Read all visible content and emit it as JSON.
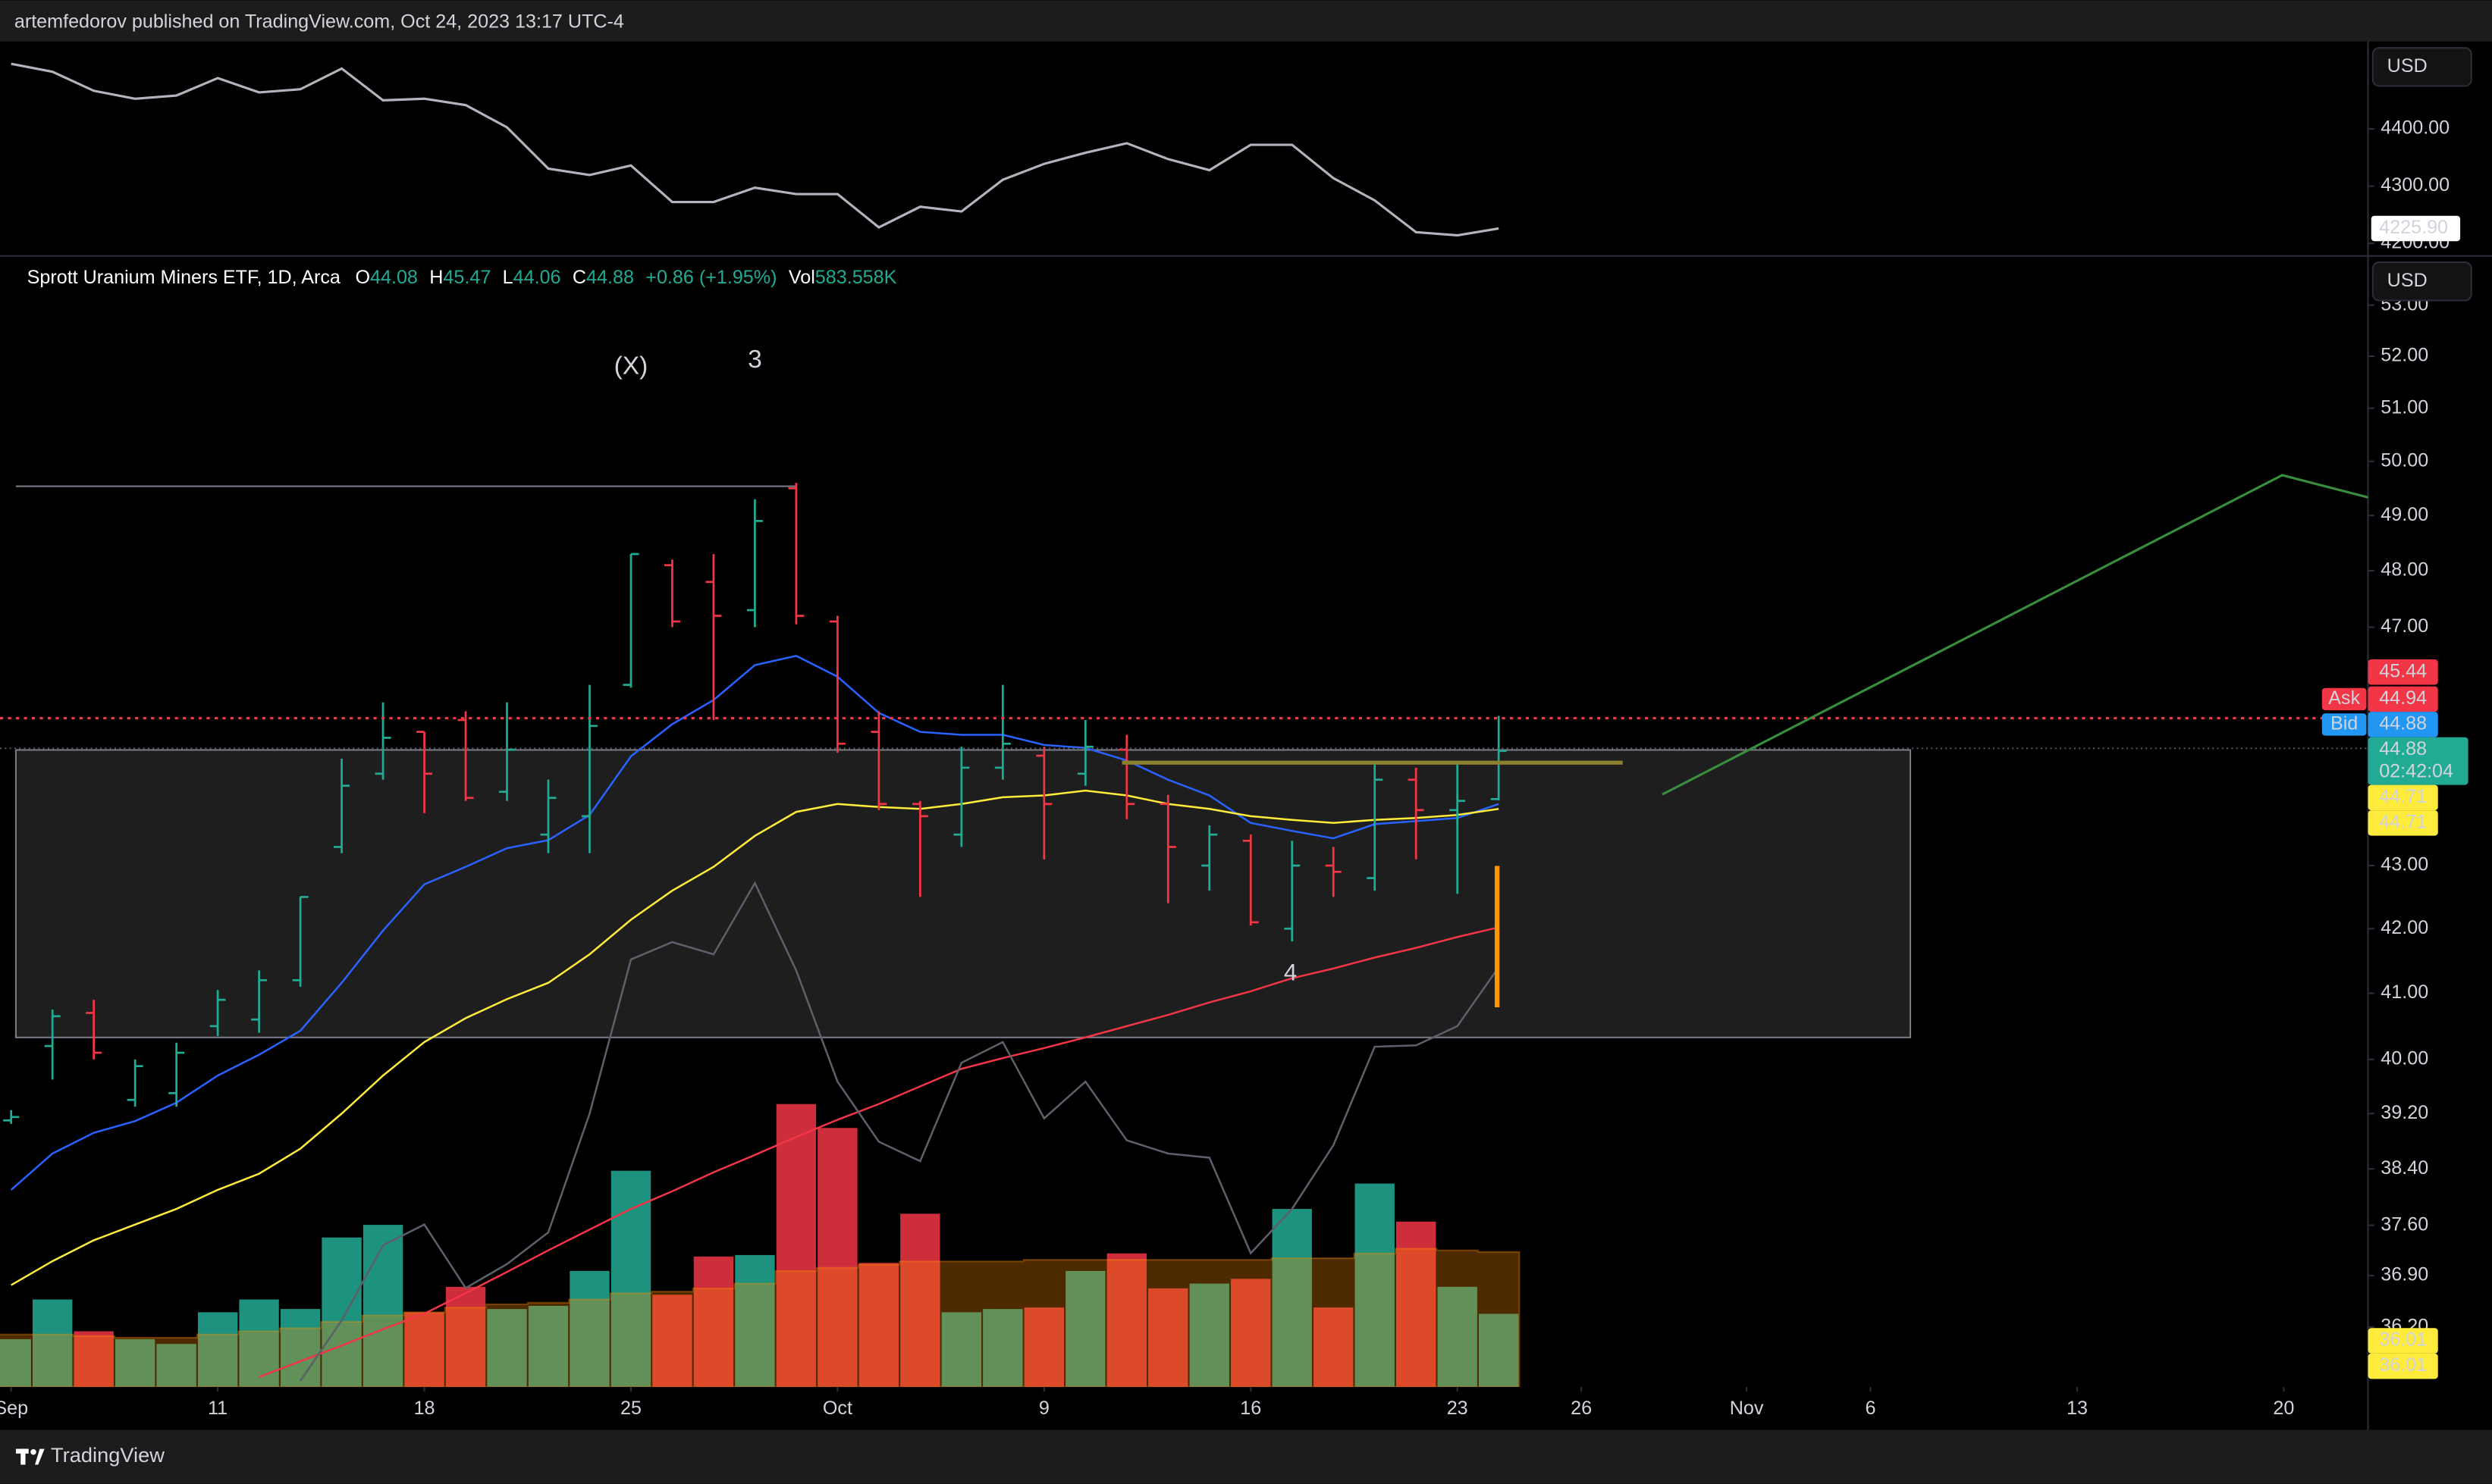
{
  "header": "artemfedorov published on TradingView.com, Oct 24, 2023 13:17 UTC-4",
  "footer": "TradingView",
  "currency_buttons": [
    "USD",
    "USD"
  ],
  "legend": {
    "title": "Sprott Uranium Miners ETF, 1D, Arca",
    "items": [
      {
        "key": "O",
        "value": "44.08"
      },
      {
        "key": "H",
        "value": "45.47"
      },
      {
        "key": "L",
        "value": "44.06"
      },
      {
        "key": "C",
        "value": "44.88"
      }
    ],
    "change": "+0.86 (+1.95%)",
    "volume_key": "Vol",
    "volume": "583.558K"
  },
  "annotations": [
    {
      "text": "(X)",
      "color": "#ffffff"
    },
    {
      "text": "3",
      "color": "#4caf50"
    },
    {
      "text": "4",
      "color": "#4caf50"
    }
  ],
  "price_tags": [
    {
      "label": "45.44",
      "color": "#f23645"
    },
    {
      "side": "Ask",
      "label": "44.94",
      "color": "#f23645"
    },
    {
      "side": "Bid",
      "label": "44.88",
      "color": "#2196f3"
    },
    {
      "label": "44.88",
      "sub": "02:42:04",
      "color": "#22ab94"
    },
    {
      "label": "44.71",
      "color": "#ffeb3b"
    },
    {
      "label": "44.71",
      "color": "#ffeb3b"
    },
    {
      "label": "36.01",
      "color": "#ffeb3b"
    },
    {
      "label": "36.01",
      "color": "#ffeb3b"
    }
  ],
  "chart_data": [
    {
      "type": "line",
      "x": [
        -5,
        -4,
        -3,
        -2,
        -1,
        0,
        1,
        2,
        3,
        4,
        5,
        6,
        7,
        8,
        9,
        10,
        11,
        12,
        13,
        14,
        15,
        16,
        17,
        18,
        19,
        20,
        21,
        22,
        23,
        24,
        25,
        26,
        27,
        28,
        29,
        30,
        31
      ],
      "xlim": [
        -4.885,
        52.04
      ],
      "values": [
        4513.9,
        4500.0,
        4466.7,
        4452.8,
        4458.3,
        4488.9,
        4463.9,
        4469.4,
        4505.6,
        4450.0,
        4452.8,
        4441.7,
        4402.8,
        4330.6,
        4319.4,
        4336.1,
        4272.2,
        4272.2,
        4297.2,
        4286.1,
        4286.1,
        4227.8,
        4263.9,
        4255.6,
        4311.1,
        4338.9,
        4358.3,
        4375.0,
        4347.2,
        4327.8,
        4372.2,
        4372.2,
        4313.9,
        4275.0,
        4219.4,
        4213.9,
        4225.9
      ],
      "color": "#b2b5be",
      "ylim": [
        4180.6,
        4552.8
      ],
      "yticks": [
        {
          "value": 4400,
          "label": "4400.00"
        },
        {
          "value": 4300,
          "label": "4300.00"
        },
        {
          "value": 4200,
          "label": "4200.00"
        }
      ],
      "last_label": "4225.90"
    },
    {
      "type": "ohlc",
      "x": [
        -5,
        -4,
        -3,
        -2,
        -1,
        0,
        1,
        2,
        3,
        4,
        5,
        6,
        7,
        8,
        9,
        10,
        11,
        12,
        13,
        14,
        15,
        16,
        17,
        18,
        19,
        20,
        21,
        22,
        23,
        24,
        25,
        26,
        27,
        28,
        29,
        30,
        31
      ],
      "xlim": [
        -4.885,
        52.04
      ],
      "open": [
        39.1,
        40.2,
        40.7,
        39.4,
        39.5,
        40.5,
        40.6,
        41.2,
        43.3,
        44.5,
        45.2,
        45.4,
        44.2,
        43.5,
        43.8,
        46.0,
        48.1,
        47.8,
        47.3,
        49.5,
        47.1,
        45.2,
        44.0,
        43.5,
        44.6,
        44.8,
        44.5,
        44.9,
        44.0,
        43.0,
        43.4,
        42.0,
        43.0,
        42.8,
        44.4,
        43.9,
        44.08
      ],
      "high": [
        39.25,
        40.75,
        40.9,
        40.0,
        40.25,
        41.05,
        41.35,
        42.5,
        44.75,
        45.7,
        45.2,
        45.55,
        45.7,
        44.4,
        46.0,
        48.3,
        48.2,
        48.3,
        49.3,
        49.6,
        47.2,
        45.55,
        44.05,
        44.95,
        46.0,
        44.95,
        45.4,
        45.15,
        44.15,
        43.65,
        43.5,
        43.4,
        43.3,
        44.7,
        44.6,
        44.7,
        45.47
      ],
      "low": [
        39.05,
        39.7,
        40.0,
        39.3,
        39.3,
        40.35,
        40.4,
        41.1,
        43.2,
        44.4,
        43.85,
        44.05,
        44.05,
        43.2,
        43.2,
        45.95,
        47.0,
        45.4,
        47.0,
        47.05,
        44.85,
        43.9,
        42.5,
        43.3,
        44.4,
        43.1,
        44.3,
        43.75,
        42.4,
        42.6,
        42.05,
        41.8,
        42.5,
        42.6,
        43.1,
        42.55,
        44.06
      ],
      "close": [
        39.15,
        40.65,
        40.1,
        39.9,
        40.1,
        40.9,
        41.2,
        42.5,
        44.3,
        45.1,
        44.5,
        44.1,
        44.9,
        44.1,
        45.3,
        48.3,
        47.1,
        47.2,
        48.9,
        47.2,
        45.0,
        44.0,
        43.8,
        44.6,
        45.0,
        44.0,
        44.95,
        44.0,
        43.3,
        43.5,
        42.1,
        43.0,
        42.9,
        44.4,
        43.9,
        44.05,
        44.88
      ],
      "up_color": "#22ab94",
      "down_color": "#f23645",
      "volume": [
        381,
        698,
        444,
        381,
        343,
        596,
        698,
        622,
        1193,
        1294,
        596,
        799,
        622,
        647,
        926,
        1726,
        736,
        1041,
        1053,
        2259,
        2068,
        990,
        1383,
        596,
        622,
        634,
        926,
        1066,
        787,
        825,
        863,
        1421,
        634,
        1624,
        1320,
        799,
        583.558
      ],
      "volume_ma": [
        419,
        419,
        406,
        393,
        393,
        419,
        444,
        469,
        520,
        571,
        596,
        634,
        660,
        672,
        698,
        748,
        761,
        787,
        825,
        926,
        951,
        977,
        1002,
        1002,
        1002,
        1015,
        1015,
        1015,
        1015,
        1015,
        1015,
        1028,
        1028,
        1066,
        1104,
        1091,
        1078
      ],
      "volume_ma_color": "#ff8c00",
      "volume_ylim": [
        0,
        9020
      ],
      "overlays": [
        {
          "color": "#2962ff",
          "values": [
            38.1,
            38.62,
            38.92,
            39.09,
            39.36,
            39.76,
            40.07,
            40.43,
            41.16,
            41.97,
            42.7,
            42.98,
            43.28,
            43.41,
            43.82,
            44.79,
            45.33,
            45.74,
            46.34,
            46.5,
            46.14,
            45.52,
            45.2,
            45.15,
            45.15,
            44.98,
            44.93,
            44.72,
            44.4,
            44.14,
            43.69,
            43.56,
            43.44,
            43.67,
            43.72,
            43.77,
            44.0
          ]
        },
        {
          "color": "#ffeb3b",
          "values": [
            36.77,
            37.1,
            37.39,
            37.61,
            37.83,
            38.1,
            38.33,
            38.69,
            39.2,
            39.76,
            40.26,
            40.62,
            40.91,
            41.16,
            41.6,
            42.14,
            42.6,
            42.98,
            43.48,
            43.87,
            44.0,
            43.95,
            43.92,
            44.0,
            44.11,
            44.14,
            44.22,
            44.14,
            44.0,
            43.92,
            43.8,
            43.74,
            43.69,
            43.74,
            43.77,
            43.82,
            43.92
          ]
        },
        {
          "color": "#f23645",
          "values": [
            null,
            null,
            null,
            null,
            null,
            null,
            35.53,
            35.74,
            35.95,
            36.17,
            36.38,
            36.66,
            36.95,
            37.25,
            37.54,
            37.83,
            38.08,
            38.35,
            38.6,
            38.86,
            39.11,
            39.34,
            39.6,
            39.86,
            40.02,
            40.17,
            40.33,
            40.5,
            40.67,
            40.86,
            41.03,
            41.23,
            41.38,
            41.55,
            41.7,
            41.87,
            42.02
          ]
        },
        {
          "color": "#5d606b",
          "values": [
            null,
            null,
            null,
            null,
            null,
            null,
            null,
            35.48,
            36.29,
            37.32,
            37.61,
            36.73,
            37.06,
            37.5,
            39.2,
            41.52,
            41.79,
            41.6,
            42.72,
            41.35,
            39.67,
            38.79,
            38.51,
            39.95,
            40.26,
            39.13,
            39.67,
            38.81,
            38.62,
            38.56,
            37.21,
            37.83,
            38.74,
            40.19,
            40.21,
            40.5,
            41.4
          ]
        }
      ],
      "ylim": [
        35.4,
        53.95
      ],
      "log_scale": true,
      "yticks": [
        {
          "value": 53,
          "label": "53.00"
        },
        {
          "value": 52,
          "label": "52.00"
        },
        {
          "value": 51,
          "label": "51.00"
        },
        {
          "value": 50,
          "label": "50.00"
        },
        {
          "value": 49,
          "label": "49.00"
        },
        {
          "value": 48,
          "label": "48.00"
        },
        {
          "value": 47,
          "label": "47.00"
        },
        {
          "value": 43,
          "label": "43.00"
        },
        {
          "value": 42,
          "label": "42.00"
        },
        {
          "value": 41,
          "label": "41.00"
        },
        {
          "value": 40,
          "label": "40.00"
        },
        {
          "value": 39.2,
          "label": "39.20"
        },
        {
          "value": 38.4,
          "label": "38.40"
        },
        {
          "value": 37.6,
          "label": "37.60"
        },
        {
          "value": 36.9,
          "label": "36.90"
        },
        {
          "value": 36.2,
          "label": "36.20"
        }
      ],
      "xticks": [
        {
          "value": -5,
          "label": "Sep"
        },
        {
          "value": 0,
          "label": "11"
        },
        {
          "value": 5,
          "label": "18"
        },
        {
          "value": 10,
          "label": "25"
        },
        {
          "value": 15,
          "label": "Oct"
        },
        {
          "value": 20,
          "label": "9"
        },
        {
          "value": 25,
          "label": "16"
        },
        {
          "value": 30,
          "label": "23"
        },
        {
          "value": 33,
          "label": "26"
        },
        {
          "value": 37,
          "label": "Nov"
        },
        {
          "value": 40,
          "label": "6"
        },
        {
          "value": 45,
          "label": "13"
        },
        {
          "value": 50,
          "label": "20"
        }
      ]
    }
  ]
}
